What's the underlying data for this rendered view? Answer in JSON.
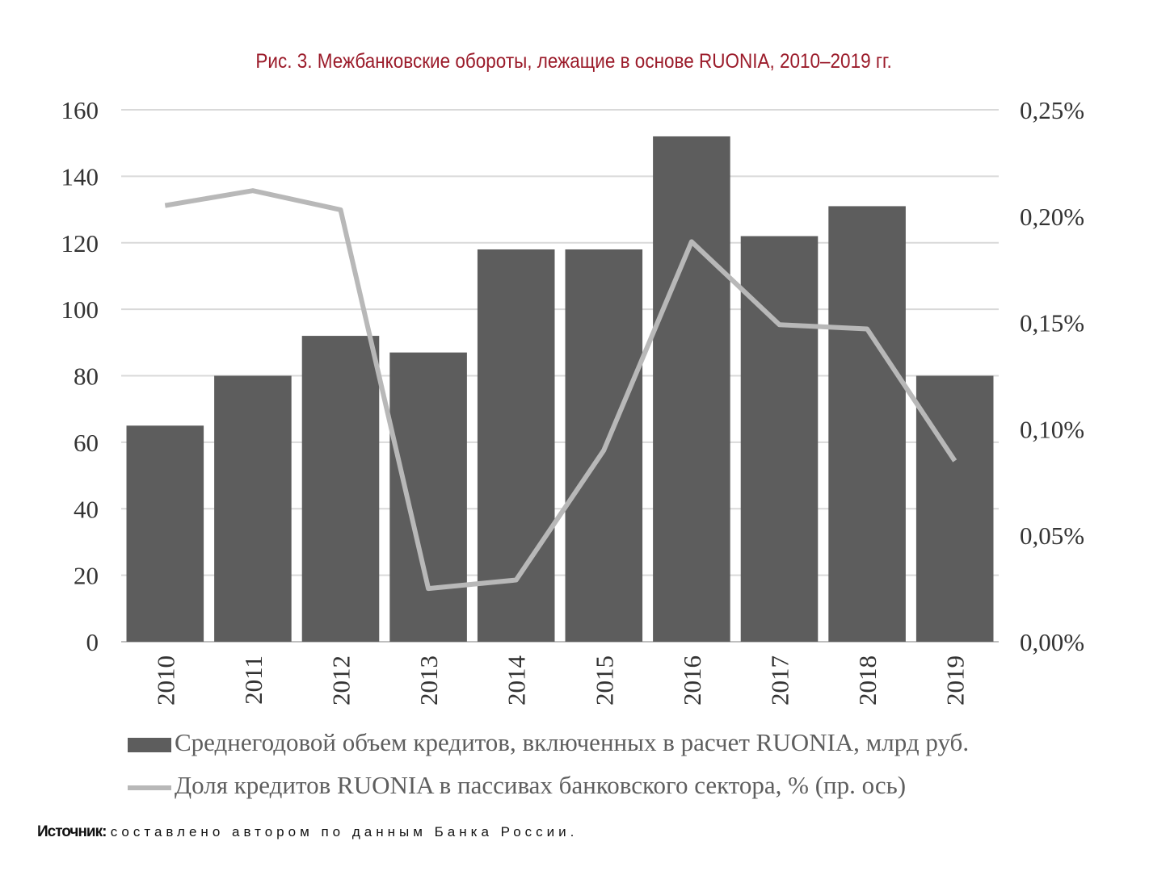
{
  "title": "Рис. 3. Межбанковские обороты, лежащие в основе RUONIA, 2010–2019 гг.",
  "chart_data": {
    "type": "bar",
    "categories": [
      "2010",
      "2011",
      "2012",
      "2013",
      "2014",
      "2015",
      "2016",
      "2017",
      "2018",
      "2019"
    ],
    "series": [
      {
        "name": "Среднегодовой объем кредитов, включенных в расчет RUONIA, млрд руб.",
        "type": "bar",
        "axis": "left",
        "values": [
          65,
          80,
          92,
          87,
          118,
          118,
          152,
          122,
          131,
          80
        ],
        "color": "#5d5d5d"
      },
      {
        "name": "Доля кредитов RUONIA в пассивах банковского сектора, % (пр. ось)",
        "type": "line",
        "axis": "right",
        "values": [
          0.205,
          0.212,
          0.203,
          0.025,
          0.029,
          0.09,
          0.188,
          0.149,
          0.147,
          0.085
        ],
        "color": "#b8b8b8"
      }
    ],
    "y_left": {
      "lim": [
        0,
        160
      ],
      "ticks": [
        "0",
        "20",
        "40",
        "60",
        "80",
        "100",
        "120",
        "140",
        "160"
      ]
    },
    "y_right": {
      "lim": [
        0,
        0.25
      ],
      "ticks": [
        "0,00%",
        "0,05%",
        "0,10%",
        "0,15%",
        "0,20%",
        "0,25%"
      ]
    },
    "grid": true,
    "legend_position": "bottom"
  },
  "legend": {
    "bar_label": "Среднегодовой объем кредитов, включенных в расчет RUONIA, млрд руб.",
    "line_label": "Доля кредитов RUONIA в пассивах банковского сектора, % (пр. ось)"
  },
  "source": {
    "label": "Источник:",
    "text": "составлено автором по данным Банка России."
  }
}
